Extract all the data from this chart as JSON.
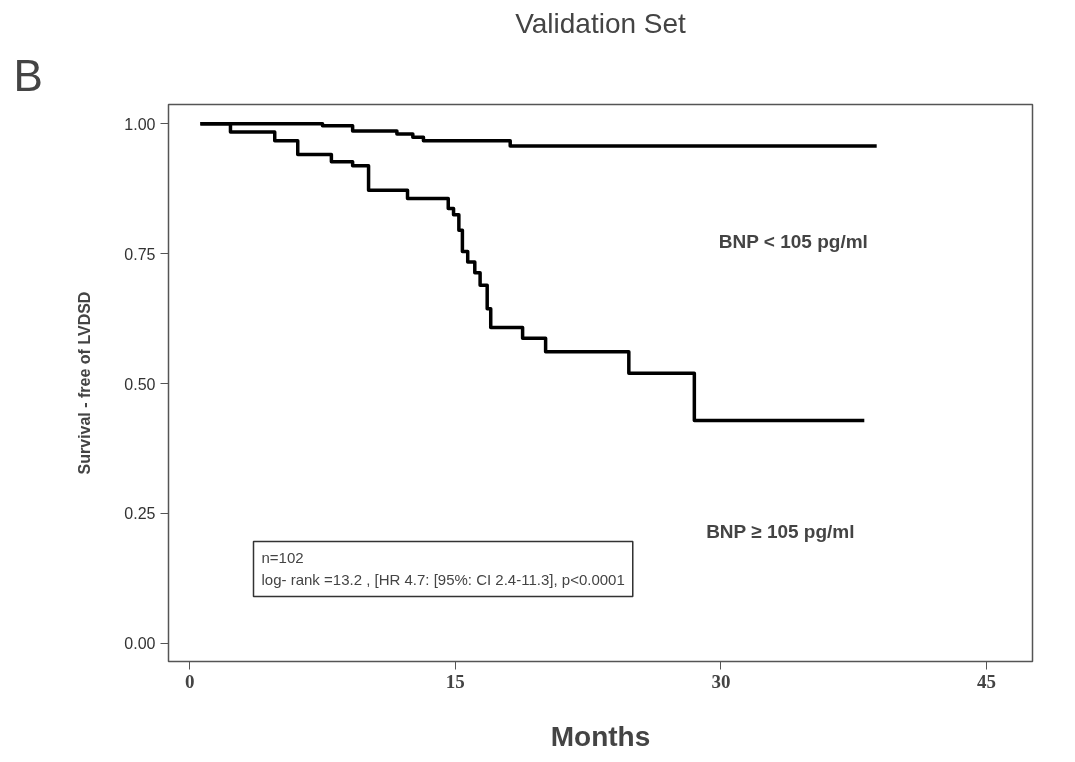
{
  "chart_data": {
    "type": "step",
    "title": "Validation Set",
    "xlabel": "Months",
    "ylabel": "Survival - free of LVDSD",
    "xlim": [
      -1.2,
      47.6
    ],
    "ylim": [
      -0.035,
      1.037
    ],
    "xticks": [
      0,
      15,
      30,
      45
    ],
    "yticks": [
      {
        "value": 0,
        "label": "0.00"
      },
      {
        "value": 0.25,
        "label": "0.25"
      },
      {
        "value": 0.5,
        "label": "0.50"
      },
      {
        "value": 0.75,
        "label": "0.75"
      },
      {
        "value": 1,
        "label": "1.00"
      }
    ],
    "grid": false,
    "line_style": "solid",
    "marker": "none",
    "series": [
      {
        "color": "#000000",
        "x": [
          0.6,
          7.5,
          9.2,
          11.7,
          12.6,
          13.2,
          18.1,
          38.8
        ],
        "values": [
          1.0,
          0.996,
          0.986,
          0.98,
          0.974,
          0.967,
          0.957,
          0.957
        ]
      },
      {
        "color": "#000000",
        "x": [
          0.6,
          2.3,
          4.8,
          6.1,
          8.0,
          9.2,
          10.1,
          12.3,
          14.6,
          14.9,
          15.2,
          15.4,
          15.7,
          16.1,
          16.4,
          16.8,
          17.0,
          18.8,
          20.1,
          24.8,
          28.5,
          38.1
        ],
        "values": [
          1.0,
          0.984,
          0.967,
          0.941,
          0.927,
          0.919,
          0.872,
          0.856,
          0.837,
          0.825,
          0.795,
          0.754,
          0.734,
          0.713,
          0.689,
          0.644,
          0.608,
          0.587,
          0.561,
          0.52,
          0.429,
          0.429
        ]
      }
    ],
    "annotations": [
      "B",
      "BNP < 105 pg/ml",
      "BNP ≥ 105 pg/ml",
      "n=102",
      "log- rank =13.2 , [HR 4.7: [95%: CI 2.4-11.3], p<0.0001"
    ]
  }
}
